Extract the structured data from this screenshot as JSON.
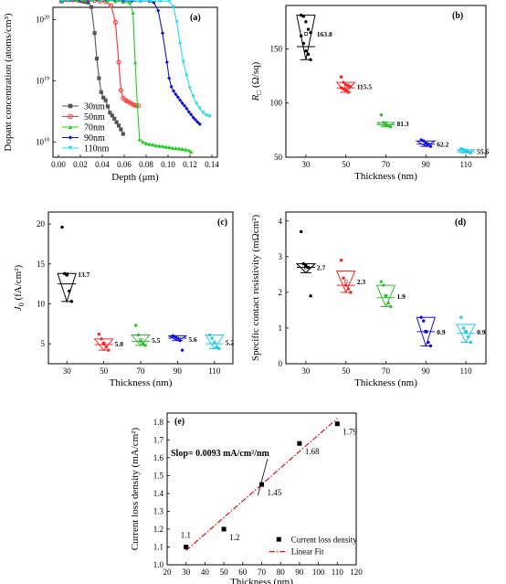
{
  "chart_data": [
    {
      "panel": "(a)",
      "type": "line",
      "xlabel": "Depth (μm)",
      "ylabel": "Dopant concentration (atoms/cm³)",
      "xlim": [
        -0.005,
        0.145
      ],
      "ylim_log10": [
        17.75,
        20.2
      ],
      "x_ticks": [
        "0.00",
        "0.02",
        "0.04",
        "0.06",
        "0.08",
        "0.10",
        "0.12",
        "0.14"
      ],
      "y_ticks": [
        {
          "label": "10",
          "exp": "18",
          "v": 18
        },
        {
          "label": "10",
          "exp": "19",
          "v": 19
        },
        {
          "label": "10",
          "exp": "20",
          "v": 20
        }
      ],
      "series": [
        {
          "name": "30nm",
          "color": "#555555",
          "marker": "square",
          "x": [
            0.003,
            0.006,
            0.009,
            0.012,
            0.015,
            0.018,
            0.021,
            0.024,
            0.027,
            0.03,
            0.033,
            0.035,
            0.037,
            0.039,
            0.041,
            0.043,
            0.045,
            0.047,
            0.049,
            0.051,
            0.053,
            0.055,
            0.057,
            0.059
          ],
          "y": [
            2e+20,
            2.1e+20,
            2.1e+20,
            2.1e+20,
            2.1e+20,
            2.05e+20,
            2e+20,
            1.95e+20,
            1.9e+20,
            1.6e+20,
            6e+19,
            2.3e+19,
            1.1e+19,
            6.5e+18,
            5.3e+18,
            4.8e+18,
            3.8e+18,
            3e+18,
            2.7e+18,
            2.4e+18,
            2.1e+18,
            1.85e+18,
            1.6e+18,
            1.35e+18
          ]
        },
        {
          "name": "50nm",
          "color": "#ff3333",
          "marker": "circle",
          "x": [
            0.003,
            0.008,
            0.013,
            0.018,
            0.023,
            0.028,
            0.033,
            0.038,
            0.043,
            0.048,
            0.052,
            0.055,
            0.057,
            0.059,
            0.061,
            0.063,
            0.065,
            0.067,
            0.069,
            0.071,
            0.073
          ],
          "y": [
            2e+20,
            2.1e+20,
            2.1e+20,
            2.1e+20,
            2.1e+20,
            2.1e+20,
            2.05e+20,
            2e+20,
            1.95e+20,
            1.7e+20,
            9e+19,
            2e+19,
            7e+18,
            5.2e+18,
            4.8e+18,
            4.6e+18,
            4.4e+18,
            4.2e+18,
            4e+18,
            3.9e+18,
            3.9e+18
          ]
        },
        {
          "name": "70nm",
          "color": "#22cc22",
          "marker": "triangle-up",
          "x": [
            0.003,
            0.01,
            0.017,
            0.024,
            0.031,
            0.038,
            0.045,
            0.052,
            0.059,
            0.065,
            0.068,
            0.07,
            0.072,
            0.074,
            0.077,
            0.08,
            0.083,
            0.086,
            0.089,
            0.092,
            0.095,
            0.098,
            0.101,
            0.104,
            0.107,
            0.11,
            0.113,
            0.116,
            0.119,
            0.121
          ],
          "y": [
            2e+20,
            2.1e+20,
            2.1e+20,
            2.1e+20,
            2.1e+20,
            2.1e+20,
            2.05e+20,
            2e+20,
            1.95e+20,
            1.9e+20,
            1.3e+20,
            2e+19,
            4e+18,
            1.1e+18,
            1e+18,
            9.5e+17,
            9.2e+17,
            9e+17,
            8.8e+17,
            8.6e+17,
            8.5e+17,
            8.3e+17,
            8.2e+17,
            8e+17,
            7.9e+17,
            7.8e+17,
            7.7e+17,
            7.5e+17,
            7.3e+17,
            6.9e+17
          ]
        },
        {
          "name": "90nm",
          "color": "#1111cc",
          "marker": "diamond",
          "x": [
            0.003,
            0.011,
            0.019,
            0.027,
            0.035,
            0.043,
            0.051,
            0.059,
            0.067,
            0.075,
            0.083,
            0.087,
            0.091,
            0.095,
            0.099,
            0.101,
            0.103,
            0.105,
            0.107,
            0.109,
            0.111,
            0.113,
            0.115,
            0.117,
            0.119,
            0.121,
            0.123,
            0.125,
            0.127,
            0.129
          ],
          "y": [
            2e+20,
            2.1e+20,
            2.1e+20,
            2.1e+20,
            2.1e+20,
            2.1e+20,
            2.1e+20,
            2.05e+20,
            2e+20,
            2e+20,
            2e+20,
            1.9e+20,
            1.4e+20,
            6e+19,
            2e+19,
            1.1e+19,
            8e+18,
            6.8e+18,
            6e+18,
            5.4e+18,
            4.8e+18,
            4.3e+18,
            3.9e+18,
            3.5e+18,
            3.1e+18,
            2.8e+18,
            2.5e+18,
            2.3e+18,
            2.1e+18,
            1.95e+18
          ]
        },
        {
          "name": "110nm",
          "color": "#22ddee",
          "marker": "triangle-down",
          "x": [
            0.003,
            0.012,
            0.021,
            0.03,
            0.039,
            0.048,
            0.057,
            0.066,
            0.075,
            0.084,
            0.093,
            0.101,
            0.105,
            0.108,
            0.111,
            0.114,
            0.117,
            0.12,
            0.123,
            0.126,
            0.129,
            0.132,
            0.135,
            0.138
          ],
          "y": [
            2e+20,
            2.1e+20,
            2.1e+20,
            2.1e+20,
            2.1e+20,
            2.1e+20,
            2.1e+20,
            2.05e+20,
            2e+20,
            2e+20,
            2e+20,
            2e+20,
            1.6e+20,
            9e+19,
            4e+19,
            2e+19,
            1.2e+19,
            7.5e+18,
            5.5e+18,
            4.2e+18,
            3.5e+18,
            3e+18,
            2.7e+18,
            2.6e+18
          ]
        }
      ]
    },
    {
      "panel": "(b)",
      "type": "box-scatter",
      "xlabel": "Thickness (nm)",
      "ylabel": "R",
      "ylabel_sub": "□",
      "ylabel_tail": " (Ω/sq)",
      "categories": [
        "30",
        "50",
        "70",
        "90",
        "110"
      ],
      "ylim": [
        50,
        190
      ],
      "y_ticks": [
        50,
        100,
        150
      ],
      "colors": [
        "#000000",
        "#ff2222",
        "#33bb33",
        "#1111dd",
        "#22ccee"
      ],
      "means": [
        163.8,
        115.5,
        81.3,
        62.2,
        55.6
      ],
      "mean_labels": [
        "163.8",
        "115.5",
        "81.3",
        "62.2",
        "55.6"
      ],
      "points": [
        [
          181,
          180,
          175,
          168,
          165,
          162,
          155,
          148,
          145,
          140
        ],
        [
          124,
          119,
          117,
          116,
          115,
          114,
          113,
          112,
          110
        ],
        [
          89,
          82,
          80,
          79,
          78
        ],
        [
          66,
          65,
          63,
          62,
          60
        ],
        [
          58,
          57,
          56,
          55,
          54
        ]
      ],
      "box": [
        [
          140,
          152,
          181
        ],
        [
          110,
          114,
          119
        ],
        [
          78,
          80,
          82
        ],
        [
          60,
          62,
          65
        ],
        [
          54,
          55,
          57
        ]
      ]
    },
    {
      "panel": "(c)",
      "type": "box-scatter",
      "xlabel": "Thickness (nm)",
      "ylabel": "J",
      "ylabel_sub": "0",
      "ylabel_tail": " (fA/cm²)",
      "categories": [
        "30",
        "50",
        "70",
        "90",
        "110"
      ],
      "ylim": [
        2.5,
        21.5
      ],
      "y_ticks": [
        5,
        10,
        15,
        20
      ],
      "colors": [
        "#000000",
        "#ff2222",
        "#33bb33",
        "#1111dd",
        "#22ccee"
      ],
      "means": [
        13.7,
        5.0,
        5.5,
        5.6,
        5.2
      ],
      "mean_labels": [
        "13.7",
        "5.0",
        "5.5",
        "5.6",
        "5.2"
      ],
      "points": [
        [
          19.6,
          13.8,
          13.6,
          11.6,
          10.3
        ],
        [
          6.2,
          5.6,
          5.1,
          4.6,
          4.2
        ],
        [
          7.3,
          6.1,
          5.3,
          5.0,
          4.8
        ],
        [
          6.0,
          5.9,
          5.7,
          5.4,
          4.2
        ],
        [
          6.1,
          5.7,
          5.1,
          4.6,
          4.4
        ]
      ],
      "box": [
        [
          10.3,
          12.5,
          13.8
        ],
        [
          4.2,
          4.9,
          5.6
        ],
        [
          4.8,
          5.3,
          6.1
        ],
        [
          5.4,
          5.7,
          6.0
        ],
        [
          4.4,
          5.0,
          6.1
        ]
      ]
    },
    {
      "panel": "(d)",
      "type": "box-scatter",
      "xlabel": "Thickness (nm)",
      "ylabel": "Specific contact resistivity  (mΩcm²)",
      "categories": [
        "30",
        "50",
        "70",
        "90",
        "110"
      ],
      "ylim": [
        0,
        4.25
      ],
      "y_ticks": [
        0,
        1,
        2,
        3,
        4
      ],
      "colors": [
        "#000000",
        "#ff2222",
        "#33bb33",
        "#1111dd",
        "#22ccee"
      ],
      "means": [
        2.7,
        2.3,
        1.9,
        0.9,
        0.9
      ],
      "mean_labels": [
        "2.7",
        "2.3",
        "1.9",
        "0.9",
        "0.9"
      ],
      "points": [
        [
          3.7,
          2.8,
          2.75,
          2.7,
          1.9
        ],
        [
          2.9,
          2.4,
          2.2,
          2.1,
          2.0
        ],
        [
          2.3,
          2.2,
          1.9,
          1.7,
          1.6
        ],
        [
          1.3,
          1.2,
          0.9,
          0.6,
          0.5
        ],
        [
          1.3,
          1.0,
          0.9,
          0.75,
          0.6
        ]
      ],
      "box": [
        [
          2.55,
          2.7,
          2.8
        ],
        [
          2.0,
          2.2,
          2.6
        ],
        [
          1.6,
          1.85,
          2.2
        ],
        [
          0.5,
          0.9,
          1.3
        ],
        [
          0.6,
          0.85,
          1.1
        ]
      ]
    },
    {
      "panel": "(e)",
      "type": "scatter",
      "xlabel": "Thickness (nm)",
      "ylabel": "Current loss density (mA/cm²)",
      "x": [
        30,
        50,
        70,
        90,
        110
      ],
      "y": [
        1.1,
        1.2,
        1.45,
        1.68,
        1.79
      ],
      "point_labels": [
        "1.1",
        "1.2",
        "1.45",
        "1.68",
        "1.79"
      ],
      "xlim": [
        20,
        120
      ],
      "ylim": [
        1.0,
        1.85
      ],
      "x_ticks": [
        20,
        30,
        40,
        50,
        60,
        70,
        80,
        90,
        100,
        110,
        120
      ],
      "y_ticks": [
        1.0,
        1.1,
        1.2,
        1.3,
        1.4,
        1.5,
        1.6,
        1.7,
        1.8
      ],
      "fit": {
        "x": [
          30,
          110
        ],
        "y": [
          1.08,
          1.82
        ]
      },
      "annotation": "Slop= 0.0093 mA/cm²/nm",
      "legend": [
        "Current loss density",
        "Linear Fit"
      ]
    }
  ]
}
